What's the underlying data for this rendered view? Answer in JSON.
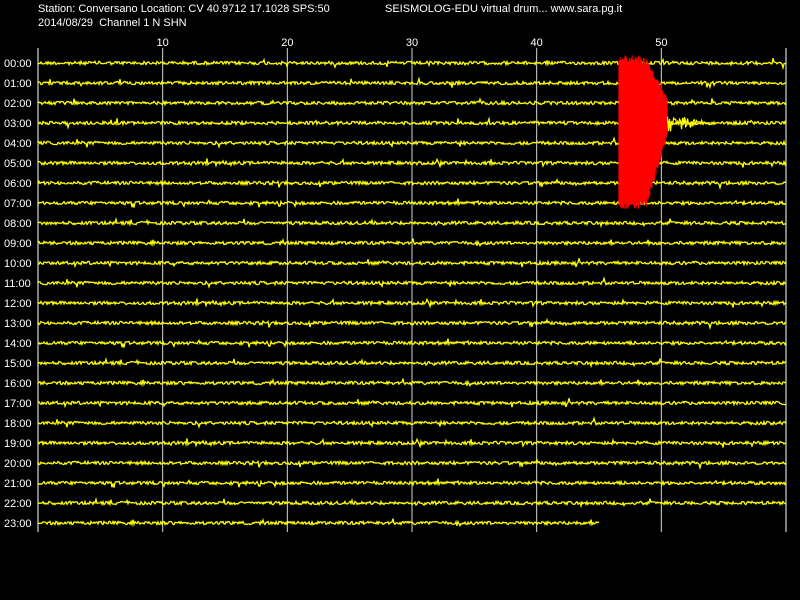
{
  "header": {
    "station_line": "Station: Conversano Location: CV 40.9712 17.1028 SPS:50",
    "title_line": "SEISMOLOG-EDU virtual drum... www.sara.pg.it",
    "date_channel_line": "2014/08/29  Channel 1 N SHN"
  },
  "colors": {
    "background": "#000000",
    "trace": "#ffff00",
    "event": "#ff0000",
    "gridline": "#ffffff"
  },
  "chart_data": {
    "type": "line",
    "x_unit": "minutes",
    "xlim": [
      0,
      60
    ],
    "x_ticks": [
      10,
      20,
      30,
      40,
      50
    ],
    "x_tick_labels": [
      "10",
      "20",
      "30",
      "40",
      "50"
    ],
    "grid": true,
    "rows": [
      "00:00",
      "01:00",
      "02:00",
      "03:00",
      "04:00",
      "05:00",
      "06:00",
      "07:00",
      "08:00",
      "09:00",
      "10:00",
      "11:00",
      "12:00",
      "13:00",
      "14:00",
      "15:00",
      "16:00",
      "17:00",
      "18:00",
      "19:00",
      "20:00",
      "21:00",
      "22:00",
      "23:00"
    ],
    "last_row_end_minute": 45,
    "event": {
      "start_minute": 46.6,
      "end_minute": 50.5,
      "rows": [
        "00:00",
        "01:00",
        "02:00",
        "03:00",
        "04:00",
        "05:00",
        "06:00",
        "07:00"
      ],
      "coda_end_minute": 54
    }
  }
}
